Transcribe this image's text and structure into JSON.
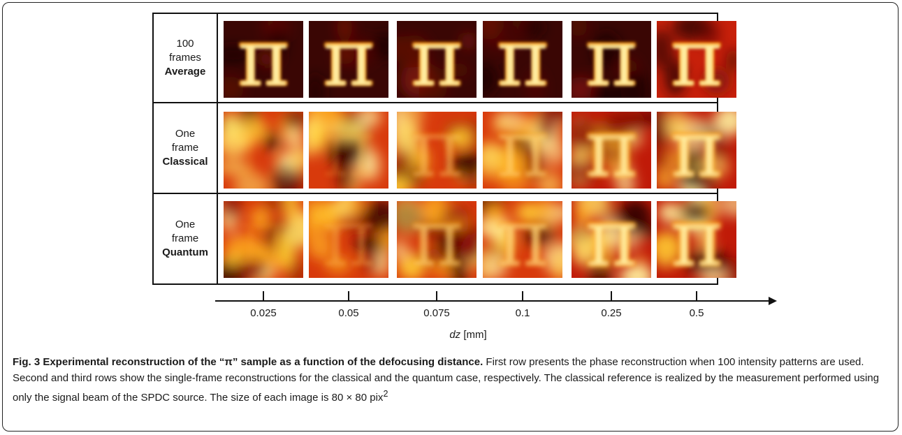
{
  "figure": {
    "rows": [
      {
        "line1": "100",
        "line2": "frames",
        "line3": "Average"
      },
      {
        "line1": "One",
        "line2": "frame",
        "line3": "Classical"
      },
      {
        "line1": "One",
        "line2": "frame",
        "line3": "Quantum"
      }
    ],
    "axis": {
      "ticks": [
        "0.025",
        "0.05",
        "0.075",
        "0.1",
        "0.25",
        "0.5"
      ],
      "label_var": "dz",
      "label_unit": " [mm]"
    },
    "image_content": "π"
  },
  "caption": {
    "title": "Fig. 3 Experimental reconstruction of the “π” sample as a function of the defocusing distance.",
    "body": " First row presents the phase reconstruction when 100 intensity patterns are used. Second and third rows show the single-frame reconstructions for the classical and the quantum case, respectively. The classical reference is realized by the measurement performed using only the signal beam of the SPDC source. The size of each image is 80 × 80 pix",
    "superscript": "2"
  }
}
